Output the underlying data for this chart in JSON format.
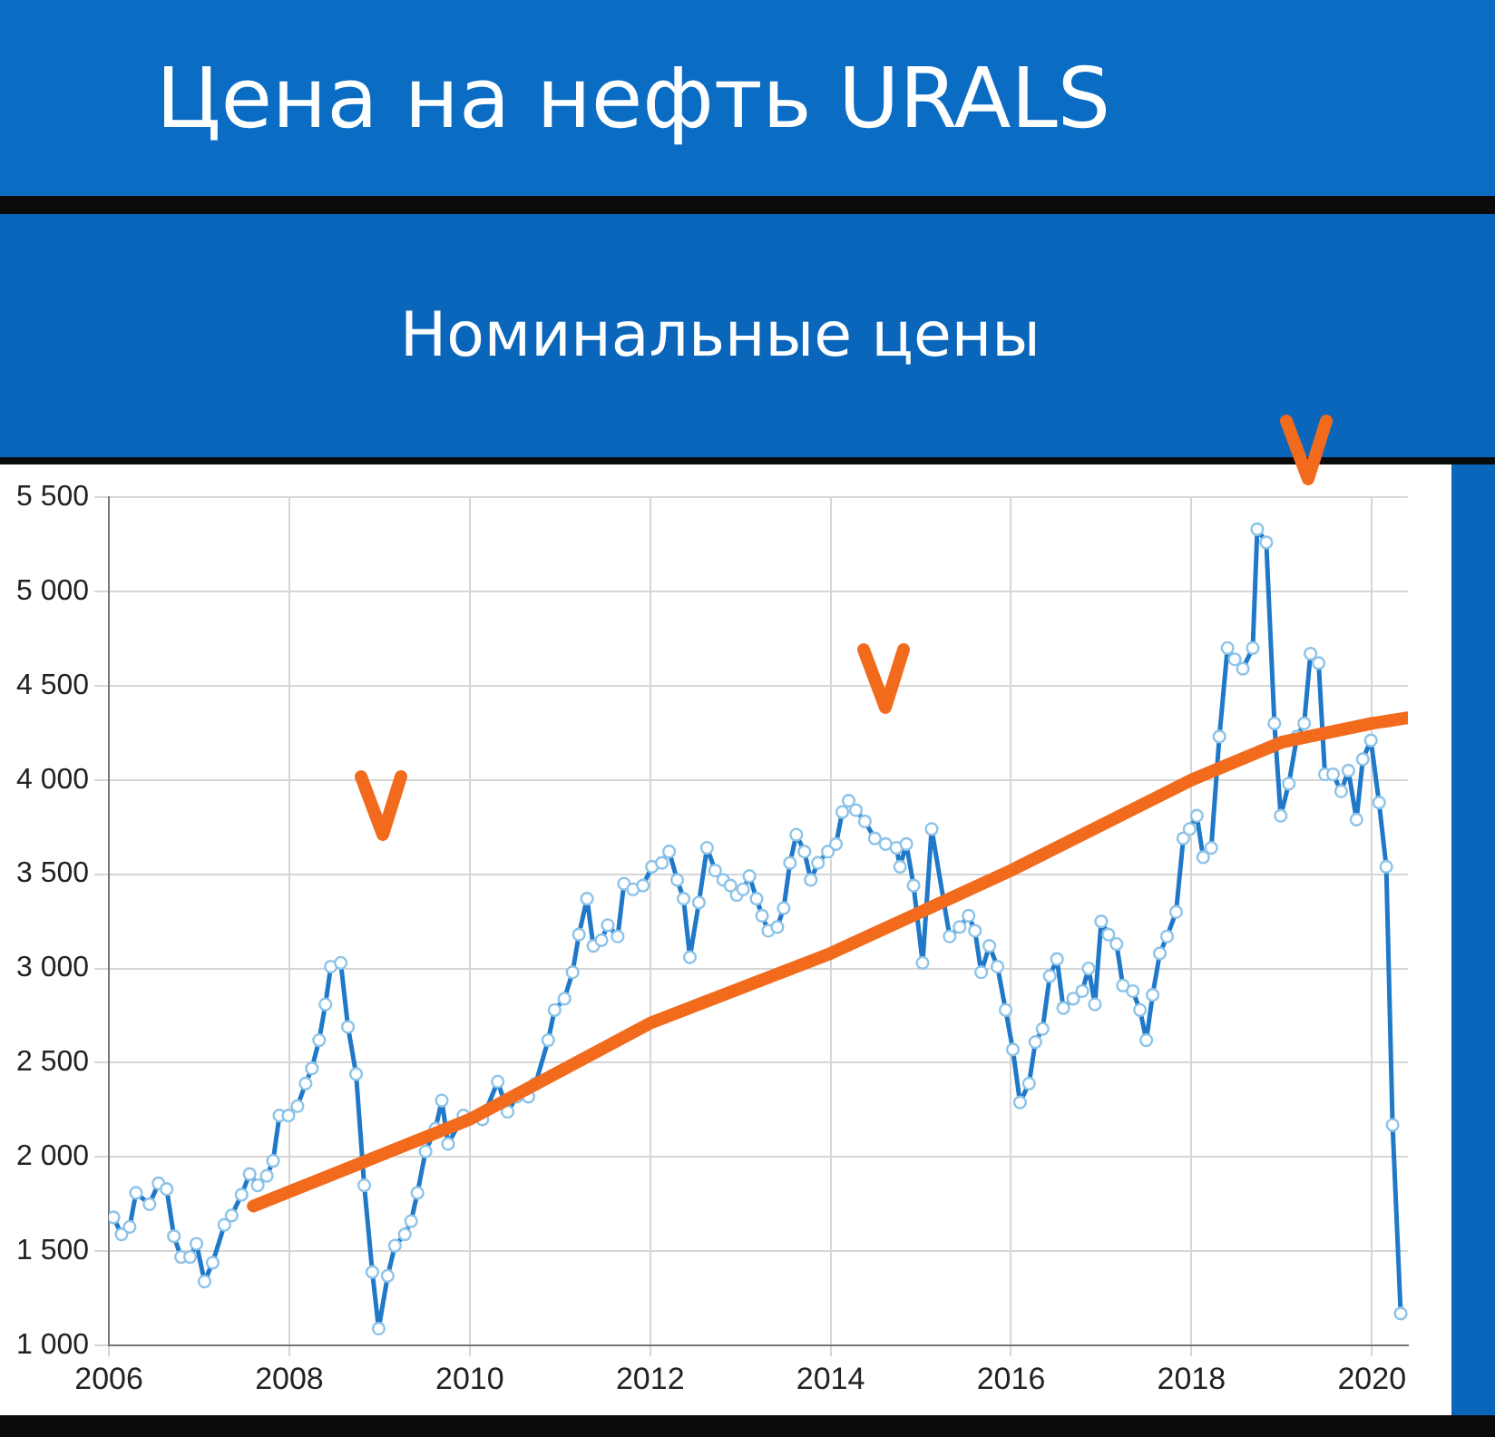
{
  "chart_data": {
    "type": "line",
    "title": "Цена на нефть URALS",
    "subtitle": "Номинальные цены",
    "xlim": [
      2006,
      2020.4
    ],
    "xticks": [
      2006,
      2008,
      2010,
      2012,
      2014,
      2016,
      2018,
      2020
    ],
    "ylim": [
      1000,
      5500
    ],
    "yticks": [
      {
        "value": 1000,
        "label": "1 000"
      },
      {
        "value": 1500,
        "label": "1 500"
      },
      {
        "value": 2000,
        "label": "2 000"
      },
      {
        "value": 2500,
        "label": "2 500"
      },
      {
        "value": 3000,
        "label": "3 000"
      },
      {
        "value": 3500,
        "label": "3 500"
      },
      {
        "value": 4000,
        "label": "4 000"
      },
      {
        "value": 4500,
        "label": "4 500"
      },
      {
        "value": 5000,
        "label": "5 000"
      },
      {
        "value": 5500,
        "label": "5 500"
      }
    ],
    "grid": true,
    "legend": false,
    "marker": "circle",
    "series": [
      {
        "color": "#1f78c8",
        "x": [
          2006.05,
          2006.14,
          2006.23,
          2006.3,
          2006.45,
          2006.55,
          2006.64,
          2006.72,
          2006.8,
          2006.9,
          2006.97,
          2007.06,
          2007.15,
          2007.28,
          2007.36,
          2007.47,
          2007.56,
          2007.65,
          2007.75,
          2007.82,
          2007.89,
          2007.99,
          2008.09,
          2008.18,
          2008.25,
          2008.33,
          2008.4,
          2008.46,
          2008.57,
          2008.65,
          2008.74,
          2008.83,
          2008.92,
          2008.99,
          2009.09,
          2009.17,
          2009.28,
          2009.35,
          2009.42,
          2009.51,
          2009.62,
          2009.69,
          2009.76,
          2009.93,
          2010.14,
          2010.31,
          2010.42,
          2010.52,
          2010.65,
          2010.73,
          2010.87,
          2010.94,
          2011.05,
          2011.14,
          2011.21,
          2011.3,
          2011.37,
          2011.46,
          2011.53,
          2011.64,
          2011.71,
          2011.81,
          2011.92,
          2012.02,
          2012.13,
          2012.21,
          2012.3,
          2012.37,
          2012.44,
          2012.54,
          2012.63,
          2012.72,
          2012.81,
          2012.89,
          2012.96,
          2013.03,
          2013.1,
          2013.18,
          2013.24,
          2013.31,
          2013.41,
          2013.48,
          2013.55,
          2013.62,
          2013.71,
          2013.78,
          2013.86,
          2013.97,
          2014.06,
          2014.13,
          2014.2,
          2014.28,
          2014.38,
          2014.49,
          2014.61,
          2014.73,
          2014.77,
          2014.84,
          2014.92,
          2015.02,
          2015.12,
          2015.32,
          2015.43,
          2015.53,
          2015.6,
          2015.67,
          2015.76,
          2015.85,
          2015.94,
          2016.02,
          2016.1,
          2016.2,
          2016.27,
          2016.35,
          2016.43,
          2016.51,
          2016.58,
          2016.69,
          2016.79,
          2016.86,
          2016.93,
          2017.0,
          2017.08,
          2017.17,
          2017.24,
          2017.35,
          2017.43,
          2017.5,
          2017.57,
          2017.65,
          2017.73,
          2017.83,
          2017.91,
          2017.98,
          2018.06,
          2018.13,
          2018.22,
          2018.31,
          2018.4,
          2018.48,
          2018.57,
          2018.68,
          2018.73,
          2018.83,
          2018.92,
          2018.99,
          2019.08,
          2019.17,
          2019.25,
          2019.32,
          2019.41,
          2019.48,
          2019.57,
          2019.66,
          2019.74,
          2019.83,
          2019.9,
          2019.99,
          2020.08,
          2020.16,
          2020.23,
          2020.32
        ],
        "values": [
          1680,
          1590,
          1630,
          1810,
          1750,
          1860,
          1830,
          1580,
          1470,
          1470,
          1540,
          1340,
          1440,
          1640,
          1690,
          1800,
          1910,
          1850,
          1900,
          1980,
          2220,
          2220,
          2270,
          2390,
          2470,
          2620,
          2810,
          3010,
          3030,
          2690,
          2440,
          1850,
          1390,
          1090,
          1370,
          1530,
          1590,
          1660,
          1810,
          2030,
          2150,
          2300,
          2070,
          2220,
          2200,
          2400,
          2240,
          2320,
          2320,
          2390,
          2620,
          2780,
          2840,
          2980,
          3180,
          3370,
          3120,
          3150,
          3230,
          3170,
          3450,
          3420,
          3440,
          3540,
          3560,
          3620,
          3470,
          3370,
          3060,
          3350,
          3640,
          3520,
          3470,
          3440,
          3390,
          3420,
          3490,
          3370,
          3280,
          3200,
          3220,
          3320,
          3560,
          3710,
          3620,
          3470,
          3560,
          3620,
          3660,
          3830,
          3890,
          3840,
          3780,
          3690,
          3660,
          3640,
          3540,
          3660,
          3440,
          3030,
          3740,
          3170,
          3220,
          3280,
          3200,
          2980,
          3120,
          3010,
          2780,
          2570,
          2290,
          2390,
          2610,
          2680,
          2960,
          3050,
          2790,
          2840,
          2880,
          3000,
          2810,
          3250,
          3180,
          3130,
          2910,
          2880,
          2780,
          2620,
          2860,
          3080,
          3170,
          3300,
          3690,
          3740,
          3810,
          3590,
          3640,
          4230,
          4700,
          4640,
          4590,
          4700,
          5330,
          5260,
          4300,
          3810,
          3980,
          4230,
          4300,
          4670,
          4620,
          4030,
          4030,
          3940,
          4050,
          3790,
          4110,
          4210,
          3880,
          3540,
          2170,
          1170
        ]
      },
      {
        "type": "line",
        "color": "#f26b1d",
        "marker": "none",
        "x": [
          2007.6,
          2008.7,
          2010,
          2012,
          2014,
          2016,
          2018,
          2019,
          2020,
          2020.4
        ],
        "values": [
          1740,
          1950,
          2200,
          2710,
          3080,
          3520,
          4000,
          4200,
          4300,
          4330
        ]
      }
    ]
  }
}
